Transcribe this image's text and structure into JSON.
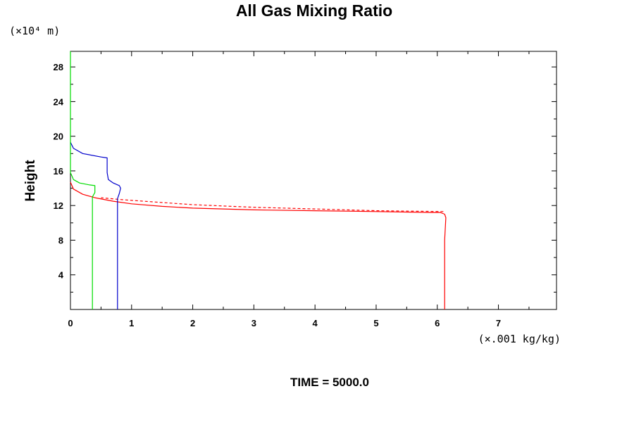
{
  "chart_data": {
    "type": "line",
    "title": "All Gas Mixing Ratio",
    "ylabel": "Height",
    "xlabel": "",
    "y_unit": "(×10⁴ m)",
    "x_unit": "(×.001 kg/kg)",
    "footer": "TIME = 5000.0",
    "xlim": [
      0,
      7.95
    ],
    "ylim": [
      0,
      29.8
    ],
    "x_ticks": [
      "0",
      "1",
      "2",
      "3",
      "4",
      "5",
      "6",
      "7"
    ],
    "y_ticks": [
      "4",
      "8",
      "12",
      "16",
      "20",
      "24",
      "28"
    ],
    "grid": false,
    "colors": {
      "red": "#ff0000",
      "blue": "#0000cc",
      "green": "#00dd00"
    },
    "series": [
      {
        "color": "#ff0000",
        "style": "solid",
        "x": [
          6.12,
          6.12,
          6.12,
          6.14,
          6.12,
          6.05,
          5.9,
          5.0,
          4.0,
          3.0,
          2.0,
          1.5,
          1.0,
          0.7,
          0.4,
          0.2,
          0.05,
          0.0
        ],
        "y": [
          0,
          5,
          8.0,
          10.6,
          11.0,
          11.2,
          11.2,
          11.3,
          11.4,
          11.5,
          11.7,
          11.9,
          12.2,
          12.5,
          12.9,
          13.3,
          13.9,
          14.7
        ]
      },
      {
        "color": "#ff0000",
        "style": "dashed",
        "x": [
          6.1,
          5.0,
          4.0,
          3.0,
          2.0,
          1.2,
          0.8,
          0.5
        ],
        "y": [
          11.3,
          11.4,
          11.6,
          11.8,
          12.1,
          12.5,
          12.7,
          12.9
        ]
      },
      {
        "color": "#0000cc",
        "style": "solid",
        "x": [
          0.77,
          0.77,
          0.77,
          0.8,
          0.82,
          0.8,
          0.7,
          0.62,
          0.6,
          0.6,
          0.5,
          0.2,
          0.05,
          0.0
        ],
        "y": [
          0,
          8,
          12.8,
          13.4,
          14.0,
          14.3,
          14.6,
          15.0,
          15.8,
          17.5,
          17.6,
          18.0,
          18.6,
          19.3
        ]
      },
      {
        "color": "#00dd00",
        "style": "solid",
        "x": [
          0.36,
          0.36,
          0.36,
          0.4,
          0.4,
          0.3,
          0.15,
          0.05,
          0.0,
          0.0
        ],
        "y": [
          0,
          10,
          13.0,
          13.5,
          14.3,
          14.4,
          14.6,
          15.0,
          15.8,
          29.8
        ]
      }
    ]
  }
}
